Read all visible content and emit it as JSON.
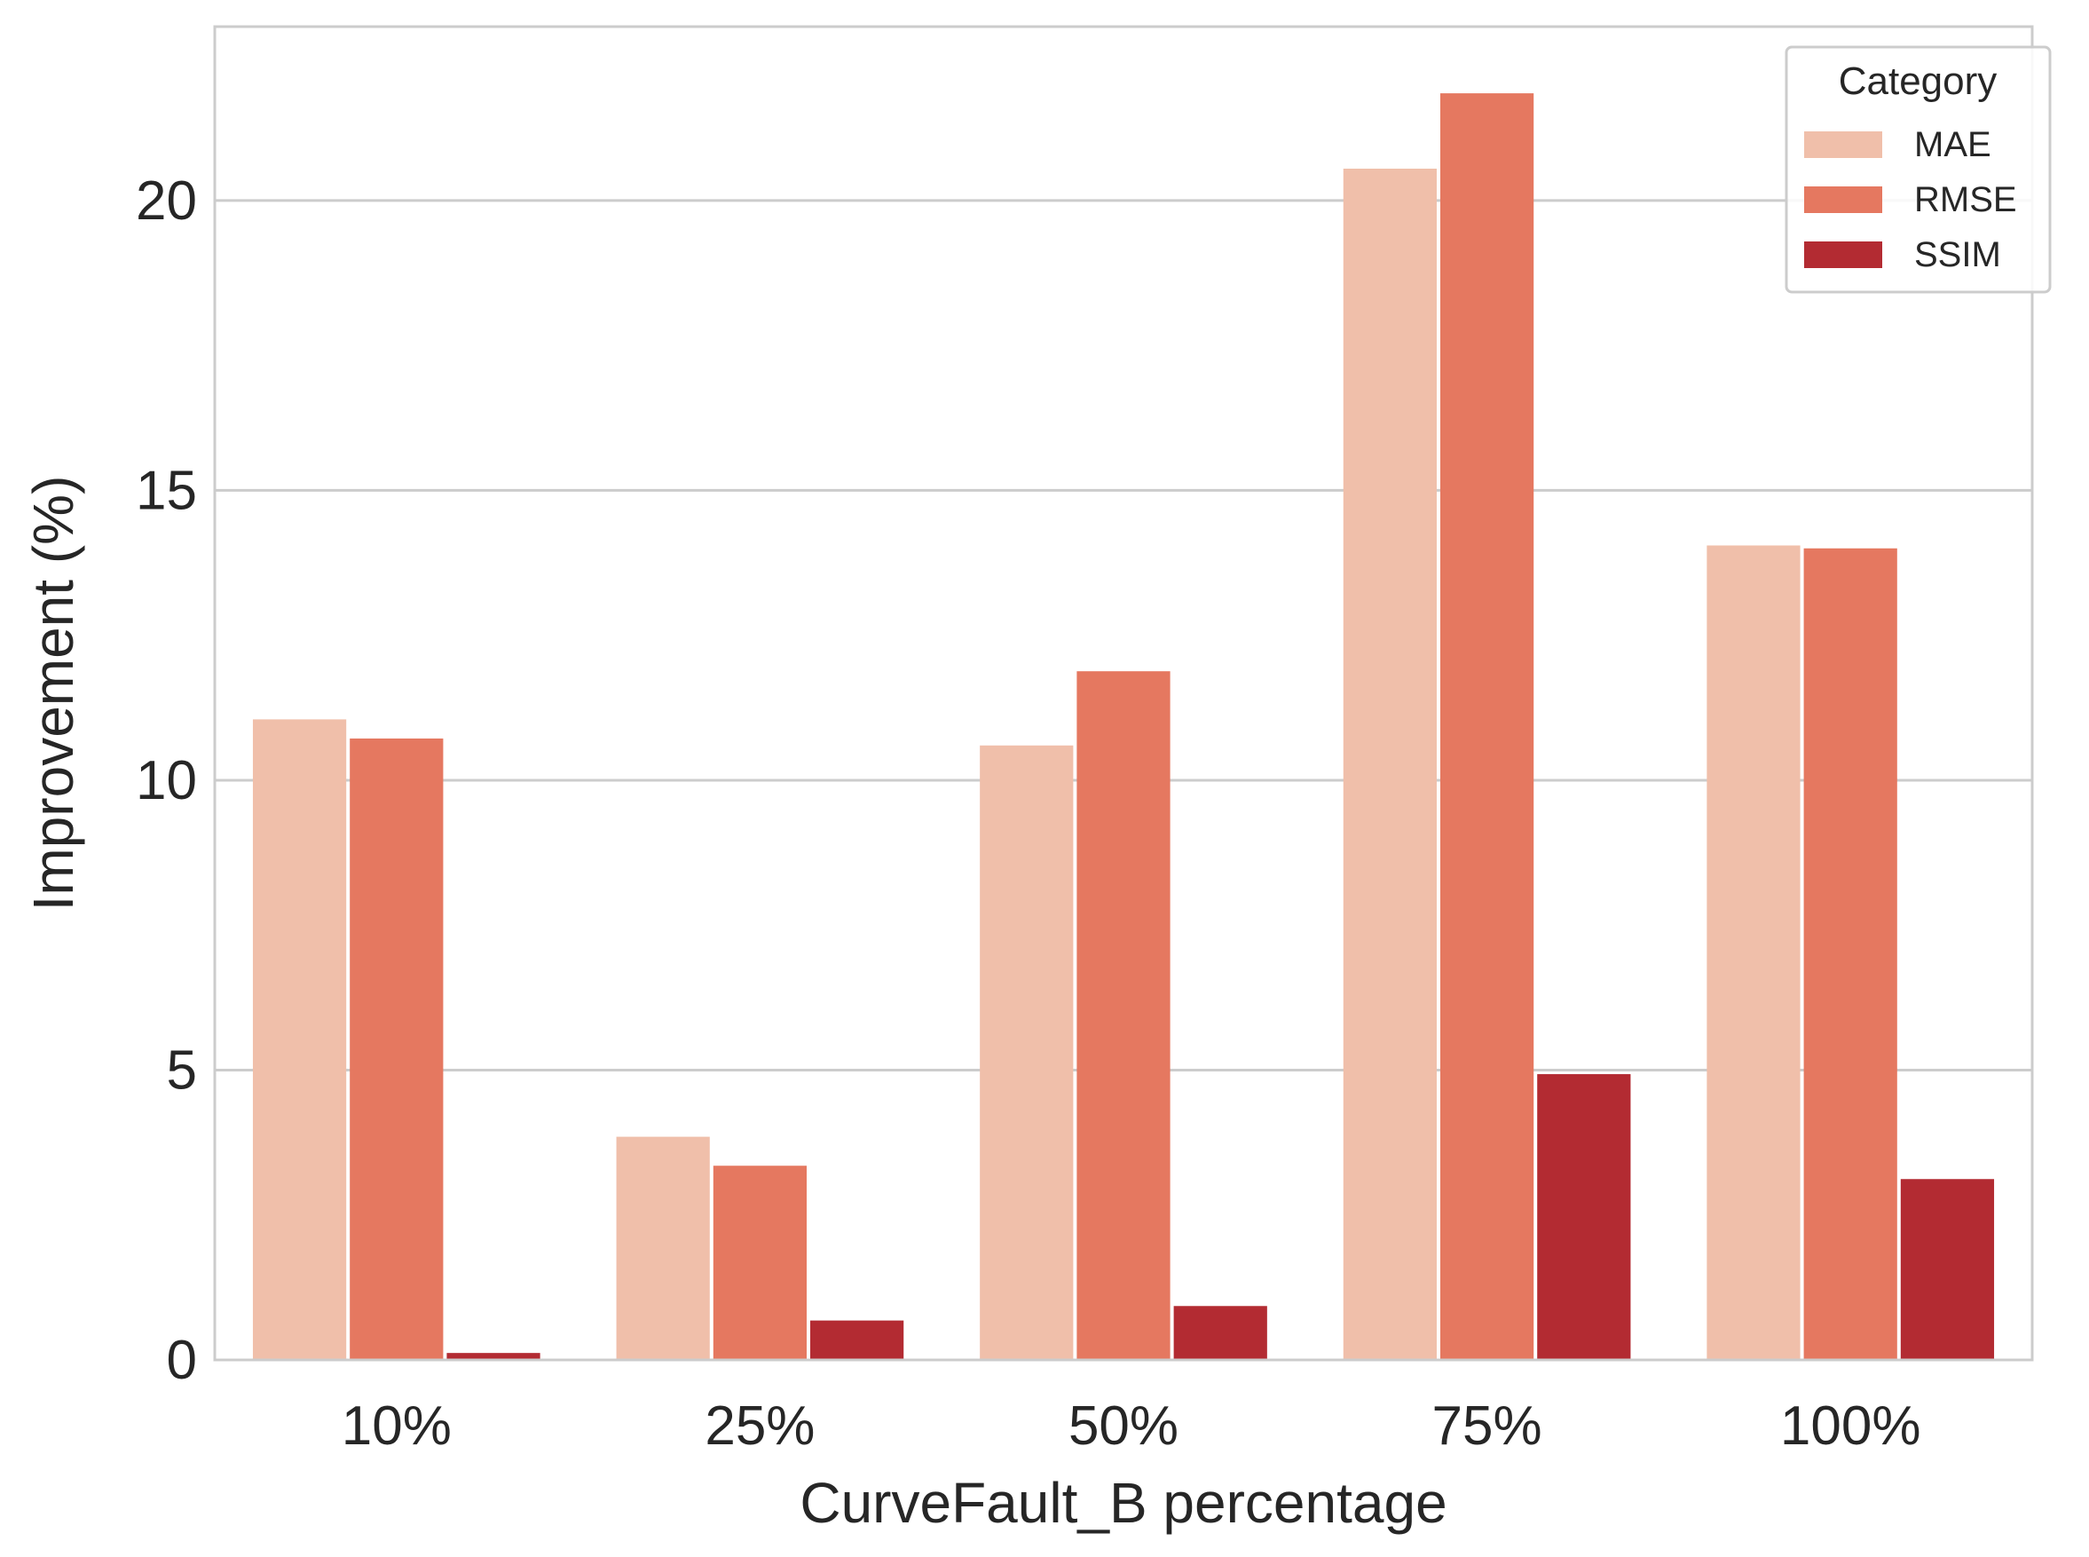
{
  "chart_data": {
    "type": "bar",
    "xlabel": "CurveFault_B percentage",
    "ylabel": "Improvement (%)",
    "categories": [
      "10%",
      "25%",
      "50%",
      "75%",
      "100%"
    ],
    "ylim": [
      0,
      23
    ],
    "yticks": [
      0,
      5,
      10,
      15,
      20
    ],
    "grid": "horizontal",
    "legend": {
      "title": "Category",
      "placement": "top-right"
    },
    "series": [
      {
        "name": "MAE",
        "color": "#f0bfaa",
        "values": [
          11.05,
          3.85,
          10.6,
          20.55,
          14.05
        ]
      },
      {
        "name": "RMSE",
        "color": "#e57860",
        "values": [
          10.72,
          3.35,
          11.88,
          21.85,
          14.0
        ]
      },
      {
        "name": "SSIM",
        "color": "#b32b32",
        "values": [
          0.12,
          0.68,
          0.93,
          4.93,
          3.12
        ]
      }
    ]
  }
}
